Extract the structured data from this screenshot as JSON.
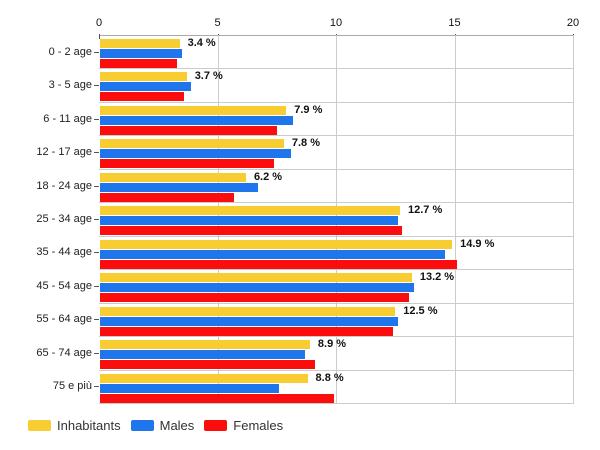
{
  "chart_data": {
    "type": "bar",
    "orientation": "horizontal",
    "title": "",
    "xlabel": "",
    "ylabel": "",
    "xlim": [
      0,
      20
    ],
    "xticks": [
      0,
      5,
      10,
      15,
      20
    ],
    "grid": true,
    "legend_position": "bottom",
    "categories": [
      "0 - 2 age",
      "3 - 5 age",
      "6 - 11 age",
      "12 - 17 age",
      "18 - 24 age",
      "25 - 34 age",
      "35 - 44 age",
      "45 - 54 age",
      "55 - 64 age",
      "65 - 74 age",
      "75 e più"
    ],
    "series": [
      {
        "name": "Inhabitants",
        "color": "#F8CD32",
        "values": [
          3.4,
          3.7,
          7.9,
          7.8,
          6.2,
          12.7,
          14.9,
          13.2,
          12.5,
          8.9,
          8.8
        ]
      },
      {
        "name": "Males",
        "color": "#1F76EC",
        "values": [
          3.5,
          3.9,
          8.2,
          8.1,
          6.7,
          12.6,
          14.6,
          13.3,
          12.6,
          8.7,
          7.6
        ]
      },
      {
        "name": "Females",
        "color": "#FB0D0D",
        "values": [
          3.3,
          3.6,
          7.5,
          7.4,
          5.7,
          12.8,
          15.1,
          13.1,
          12.4,
          9.1,
          9.9
        ]
      }
    ],
    "value_labels": [
      "3.4 %",
      "3.7 %",
      "7.9 %",
      "7.8 %",
      "6.2 %",
      "12.7 %",
      "14.9 %",
      "13.2 %",
      "12.5 %",
      "8.9 %",
      "8.8 %"
    ]
  },
  "legend": {
    "items": [
      {
        "label": "Inhabitants",
        "color": "#F8CD32"
      },
      {
        "label": "Males",
        "color": "#1F76EC"
      },
      {
        "label": "Females",
        "color": "#FB0D0D"
      }
    ]
  }
}
